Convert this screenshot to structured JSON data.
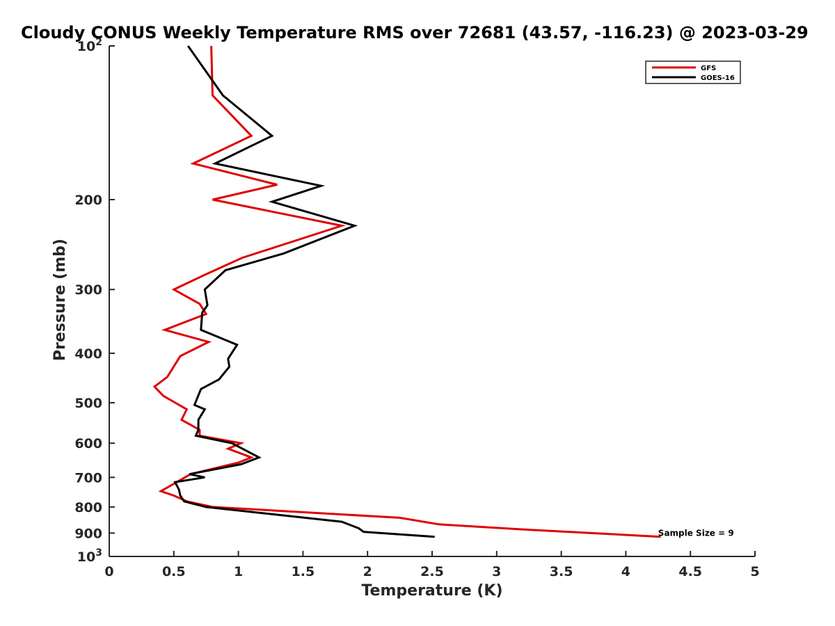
{
  "chart_data": {
    "type": "line",
    "title": "Cloudy CONUS Weekly Temperature RMS over 72681 (43.57, -116.23) @ 2023-03-29",
    "xlabel": "Temperature (K)",
    "ylabel": "Pressure (mb)",
    "xlim": [
      0,
      5
    ],
    "ylim": [
      100,
      1000
    ],
    "y_scale": "log",
    "y_reversed": true,
    "grid": false,
    "legend_position": "top-right",
    "x_ticks": [
      {
        "value": 0,
        "label": "0"
      },
      {
        "value": 0.5,
        "label": "0.5"
      },
      {
        "value": 1,
        "label": "1"
      },
      {
        "value": 1.5,
        "label": "1.5"
      },
      {
        "value": 2,
        "label": "2"
      },
      {
        "value": 2.5,
        "label": "2.5"
      },
      {
        "value": 3,
        "label": "3"
      },
      {
        "value": 3.5,
        "label": "3.5"
      },
      {
        "value": 4,
        "label": "4"
      },
      {
        "value": 4.5,
        "label": "4.5"
      },
      {
        "value": 5,
        "label": "5"
      }
    ],
    "y_ticks": [
      {
        "value": 100,
        "base": "10",
        "exp": "2"
      },
      {
        "value": 200,
        "base": "200",
        "exp": ""
      },
      {
        "value": 300,
        "base": "300",
        "exp": ""
      },
      {
        "value": 400,
        "base": "400",
        "exp": ""
      },
      {
        "value": 500,
        "base": "500",
        "exp": ""
      },
      {
        "value": 600,
        "base": "600",
        "exp": ""
      },
      {
        "value": 700,
        "base": "700",
        "exp": ""
      },
      {
        "value": 800,
        "base": "800",
        "exp": ""
      },
      {
        "value": 900,
        "base": "900",
        "exp": ""
      },
      {
        "value": 1000,
        "base": "10",
        "exp": "3"
      }
    ],
    "series": [
      {
        "name": "GFS",
        "color": "#e00000",
        "points": [
          [
            0.79,
            100
          ],
          [
            0.8,
            125
          ],
          [
            1.1,
            150
          ],
          [
            0.65,
            170
          ],
          [
            1.3,
            187
          ],
          [
            0.8,
            200
          ],
          [
            1.8,
            225
          ],
          [
            1.03,
            260
          ],
          [
            0.75,
            280
          ],
          [
            0.5,
            300
          ],
          [
            0.7,
            320
          ],
          [
            0.75,
            335
          ],
          [
            0.43,
            360
          ],
          [
            0.77,
            380
          ],
          [
            0.55,
            405
          ],
          [
            0.45,
            445
          ],
          [
            0.35,
            465
          ],
          [
            0.42,
            485
          ],
          [
            0.6,
            515
          ],
          [
            0.56,
            540
          ],
          [
            0.7,
            565
          ],
          [
            0.7,
            580
          ],
          [
            1.02,
            600
          ],
          [
            0.92,
            615
          ],
          [
            1.1,
            640
          ],
          [
            1.0,
            655
          ],
          [
            0.63,
            690
          ],
          [
            0.4,
            745
          ],
          [
            0.5,
            760
          ],
          [
            0.6,
            780
          ],
          [
            0.8,
            800
          ],
          [
            2.25,
            840
          ],
          [
            2.55,
            865
          ],
          [
            3.2,
            885
          ],
          [
            4.27,
            915
          ]
        ]
      },
      {
        "name": "GOES-16",
        "color": "#000000",
        "points": [
          [
            0.61,
            100
          ],
          [
            0.88,
            125
          ],
          [
            1.26,
            150
          ],
          [
            0.82,
            170
          ],
          [
            1.64,
            188
          ],
          [
            1.26,
            202
          ],
          [
            1.9,
            225
          ],
          [
            1.35,
            255
          ],
          [
            0.9,
            275
          ],
          [
            0.74,
            300
          ],
          [
            0.76,
            322
          ],
          [
            0.72,
            333
          ],
          [
            0.71,
            360
          ],
          [
            0.99,
            385
          ],
          [
            0.92,
            410
          ],
          [
            0.93,
            425
          ],
          [
            0.85,
            450
          ],
          [
            0.71,
            470
          ],
          [
            0.66,
            505
          ],
          [
            0.74,
            515
          ],
          [
            0.69,
            540
          ],
          [
            0.69,
            565
          ],
          [
            0.67,
            580
          ],
          [
            0.95,
            600
          ],
          [
            1.16,
            640
          ],
          [
            1.02,
            660
          ],
          [
            0.62,
            690
          ],
          [
            0.74,
            700
          ],
          [
            0.51,
            715
          ],
          [
            0.54,
            740
          ],
          [
            0.55,
            760
          ],
          [
            0.58,
            780
          ],
          [
            0.75,
            800
          ],
          [
            1.8,
            855
          ],
          [
            1.93,
            880
          ],
          [
            1.97,
            895
          ],
          [
            2.52,
            915
          ]
        ]
      }
    ],
    "annotation": {
      "text": "Sample Size = 9",
      "x": 4.25,
      "y": 900
    }
  }
}
